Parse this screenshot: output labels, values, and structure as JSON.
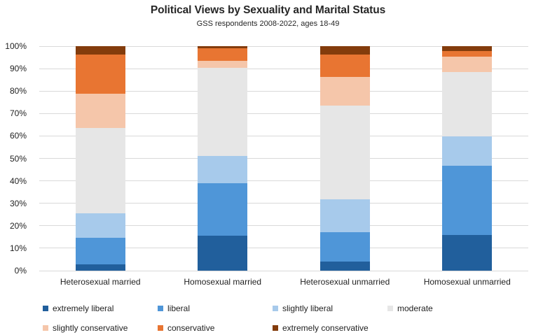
{
  "title": "Political Views by Sexuality and Marital Status",
  "subtitle": "GSS respondents 2008-2022, ages 18-49",
  "chart_data": {
    "type": "bar",
    "stacked": true,
    "units": "percent",
    "title": "Political Views by Sexuality and Marital Status",
    "subtitle": "GSS respondents 2008-2022, ages 18-49",
    "categories": [
      "Heterosexual married",
      "Homosexual married",
      "Heterosexual unmarried",
      "Homosexual unmarried"
    ],
    "series": [
      {
        "name": "extremely liberal",
        "color": "#215F9C",
        "values": [
          2.9,
          15.7,
          4.1,
          15.8
        ]
      },
      {
        "name": "liberal",
        "color": "#4F96D8",
        "values": [
          11.6,
          23.3,
          13.1,
          30.8
        ]
      },
      {
        "name": "slightly liberal",
        "color": "#A7CAEB",
        "values": [
          11.1,
          12.2,
          14.5,
          13.1
        ]
      },
      {
        "name": "moderate",
        "color": "#E6E6E6",
        "values": [
          38.0,
          39.0,
          41.8,
          28.9
        ]
      },
      {
        "name": "slightly conservative",
        "color": "#F5C6AA",
        "values": [
          15.2,
          3.2,
          12.9,
          6.7
        ]
      },
      {
        "name": "conservative",
        "color": "#E87532",
        "values": [
          17.4,
          5.6,
          9.9,
          2.4
        ]
      },
      {
        "name": "extremely conservative",
        "color": "#833C0C",
        "values": [
          3.8,
          1.0,
          3.7,
          2.3
        ]
      }
    ],
    "y_ticks": [
      {
        "label": "0%",
        "value": 0
      },
      {
        "label": "10%",
        "value": 10
      },
      {
        "label": "20%",
        "value": 20
      },
      {
        "label": "30%",
        "value": 30
      },
      {
        "label": "40%",
        "value": 40
      },
      {
        "label": "50%",
        "value": 50
      },
      {
        "label": "60%",
        "value": 60
      },
      {
        "label": "70%",
        "value": 70
      },
      {
        "label": "80%",
        "value": 80
      },
      {
        "label": "90%",
        "value": 90
      },
      {
        "label": "100%",
        "value": 100
      }
    ],
    "ylim": [
      0,
      100
    ],
    "grid": true,
    "legend_position": "bottom",
    "legend_rows": [
      [
        "extremely liberal",
        "liberal",
        "slightly liberal",
        "moderate"
      ],
      [
        "slightly conservative",
        "conservative",
        "extremely conservative"
      ]
    ]
  },
  "colors": {
    "grid": "#D9D9D9",
    "text": "#1F1F1F",
    "background": "#FFFFFF"
  }
}
